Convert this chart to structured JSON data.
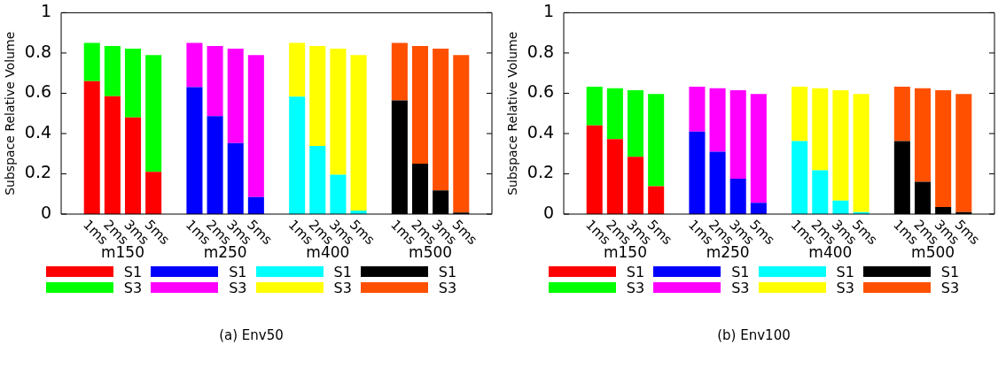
{
  "chart_data": [
    {
      "type": "bar",
      "title": "(a) Env50",
      "ylabel": "Subspace Relative Volume",
      "stacked": true,
      "legend": "bottom",
      "categories": [
        null,
        "1ms",
        "2ms",
        "3ms",
        "5ms",
        null,
        "1ms",
        "2ms",
        "3ms",
        "5ms",
        null,
        "1ms",
        "2ms",
        "3ms",
        "5ms",
        null,
        "1ms",
        "2ms",
        "3ms",
        "5ms",
        null
      ],
      "annotations": [
        "m150",
        "m250",
        "m400",
        "m500"
      ],
      "ylim": [
        0,
        1
      ],
      "yticks": [
        0,
        0.2,
        0.4,
        0.6,
        0.8,
        1
      ],
      "series": [
        {
          "name": "S1",
          "color": "#ff0000",
          "values": [
            null,
            0.66,
            0.585,
            0.48,
            0.21,
            null,
            null,
            null,
            null,
            null,
            null,
            null,
            null,
            null,
            null,
            null,
            null,
            null,
            null,
            null,
            null
          ]
        },
        {
          "name": "S3",
          "color": "#00ff00",
          "values": [
            null,
            0.19,
            0.25,
            0.342,
            0.58,
            null,
            null,
            null,
            null,
            null,
            null,
            null,
            null,
            null,
            null,
            null,
            null,
            null,
            null,
            null,
            null
          ]
        },
        {
          "name": "S1",
          "color": "#0000ff",
          "values": [
            null,
            null,
            null,
            null,
            null,
            null,
            0.63,
            0.487,
            0.353,
            0.085,
            null,
            null,
            null,
            null,
            null,
            null,
            null,
            null,
            null,
            null,
            null
          ]
        },
        {
          "name": "S3",
          "color": "#ff00ff",
          "values": [
            null,
            null,
            null,
            null,
            null,
            null,
            0.22,
            0.348,
            0.469,
            0.705,
            null,
            null,
            null,
            null,
            null,
            null,
            null,
            null,
            null,
            null,
            null
          ]
        },
        {
          "name": "S1",
          "color": "#00ffff",
          "values": [
            null,
            null,
            null,
            null,
            null,
            null,
            null,
            null,
            null,
            null,
            null,
            0.583,
            0.338,
            0.195,
            0.018,
            null,
            null,
            null,
            null,
            null,
            null
          ]
        },
        {
          "name": "S3",
          "color": "#ffff00",
          "values": [
            null,
            null,
            null,
            null,
            null,
            null,
            null,
            null,
            null,
            null,
            null,
            0.267,
            0.497,
            0.627,
            0.772,
            null,
            null,
            null,
            null,
            null,
            null
          ]
        },
        {
          "name": "S1",
          "color": "#000000",
          "values": [
            null,
            null,
            null,
            null,
            null,
            null,
            null,
            null,
            null,
            null,
            null,
            null,
            null,
            null,
            null,
            null,
            0.565,
            0.25,
            0.117,
            0.008,
            null
          ]
        },
        {
          "name": "S3",
          "color": "#ff5000",
          "values": [
            null,
            null,
            null,
            null,
            null,
            null,
            null,
            null,
            null,
            null,
            null,
            null,
            null,
            null,
            null,
            null,
            0.285,
            0.585,
            0.705,
            0.782,
            null
          ]
        }
      ]
    },
    {
      "type": "bar",
      "title": "(b) Env100",
      "ylabel": "Subspace Relative Volume",
      "stacked": true,
      "legend": "bottom",
      "categories": [
        null,
        "1ms",
        "2ms",
        "3ms",
        "5ms",
        null,
        "1ms",
        "2ms",
        "3ms",
        "5ms",
        null,
        "1ms",
        "2ms",
        "3ms",
        "5ms",
        null,
        "1ms",
        "2ms",
        "3ms",
        "5ms",
        null
      ],
      "annotations": [
        "m150",
        "m250",
        "m400",
        "m500"
      ],
      "ylim": [
        0,
        1
      ],
      "yticks": [
        0,
        0.2,
        0.4,
        0.6,
        0.8,
        1
      ],
      "series": [
        {
          "name": "S1",
          "color": "#ff0000",
          "values": [
            null,
            0.44,
            0.372,
            0.284,
            0.138,
            null,
            null,
            null,
            null,
            null,
            null,
            null,
            null,
            null,
            null,
            null,
            null,
            null,
            null,
            null,
            null
          ]
        },
        {
          "name": "S3",
          "color": "#00ff00",
          "values": [
            null,
            0.193,
            0.253,
            0.331,
            0.458,
            null,
            null,
            null,
            null,
            null,
            null,
            null,
            null,
            null,
            null,
            null,
            null,
            null,
            null,
            null,
            null
          ]
        },
        {
          "name": "S1",
          "color": "#0000ff",
          "values": [
            null,
            null,
            null,
            null,
            null,
            null,
            0.41,
            0.31,
            0.176,
            0.056,
            null,
            null,
            null,
            null,
            null,
            null,
            null,
            null,
            null,
            null,
            null
          ]
        },
        {
          "name": "S3",
          "color": "#ff00ff",
          "values": [
            null,
            null,
            null,
            null,
            null,
            null,
            0.223,
            0.315,
            0.439,
            0.54,
            null,
            null,
            null,
            null,
            null,
            null,
            null,
            null,
            null,
            null,
            null
          ]
        },
        {
          "name": "S1",
          "color": "#00ffff",
          "values": [
            null,
            null,
            null,
            null,
            null,
            null,
            null,
            null,
            null,
            null,
            null,
            0.362,
            0.217,
            0.067,
            0.01,
            null,
            null,
            null,
            null,
            null,
            null
          ]
        },
        {
          "name": "S3",
          "color": "#ffff00",
          "values": [
            null,
            null,
            null,
            null,
            null,
            null,
            null,
            null,
            null,
            null,
            null,
            0.271,
            0.408,
            0.548,
            0.586,
            null,
            null,
            null,
            null,
            null,
            null
          ]
        },
        {
          "name": "S1",
          "color": "#000000",
          "values": [
            null,
            null,
            null,
            null,
            null,
            null,
            null,
            null,
            null,
            null,
            null,
            null,
            null,
            null,
            null,
            null,
            0.362,
            0.16,
            0.035,
            0.01,
            null
          ]
        },
        {
          "name": "S3",
          "color": "#ff5000",
          "values": [
            null,
            null,
            null,
            null,
            null,
            null,
            null,
            null,
            null,
            null,
            null,
            null,
            null,
            null,
            null,
            null,
            0.271,
            0.465,
            0.58,
            0.586,
            null
          ]
        }
      ]
    }
  ]
}
